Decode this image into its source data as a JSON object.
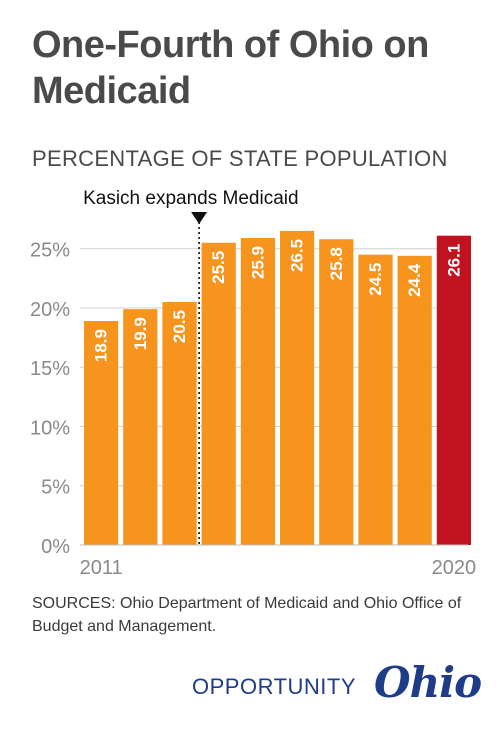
{
  "header": {
    "title": "One-Fourth of Ohio on Medicaid",
    "subtitle": "PERCENTAGE OF STATE POPULATION"
  },
  "chart_data": {
    "type": "bar",
    "title": "One-Fourth of Ohio on Medicaid",
    "subtitle": "PERCENTAGE OF STATE POPULATION",
    "categories": [
      "2011",
      "2012",
      "2013",
      "2014",
      "2015",
      "2016",
      "2017",
      "2018",
      "2019",
      "2020"
    ],
    "category_labels_shown": [
      "2011",
      "2020"
    ],
    "values": [
      18.9,
      19.9,
      20.5,
      25.5,
      25.9,
      26.5,
      25.8,
      24.5,
      24.4,
      26.1
    ],
    "value_labels": [
      "18.9",
      "19.9",
      "20.5",
      "25.5",
      "25.9",
      "26.5",
      "25.8",
      "24.5",
      "24.4",
      "26.1"
    ],
    "ylim": [
      0,
      27
    ],
    "yticks": [
      0,
      5,
      10,
      15,
      20,
      25
    ],
    "ytick_labels": [
      "0%",
      "5%",
      "10%",
      "15%",
      "20%",
      "25%"
    ],
    "grid": true,
    "colors": {
      "default": "#f7941d",
      "highlight": "#c1121f",
      "label": "#ffffff"
    },
    "highlight_index": 9,
    "annotation": {
      "text": "Kasich expands Medicaid",
      "between_index": 3
    }
  },
  "footer": {
    "sources": "SOURCES: Ohio Department of Medicaid and Ohio Office of Budget and Management."
  },
  "logo": {
    "word1": "OPPORTUNITY",
    "word2": "Ohio",
    "color": "#1f3c88"
  }
}
